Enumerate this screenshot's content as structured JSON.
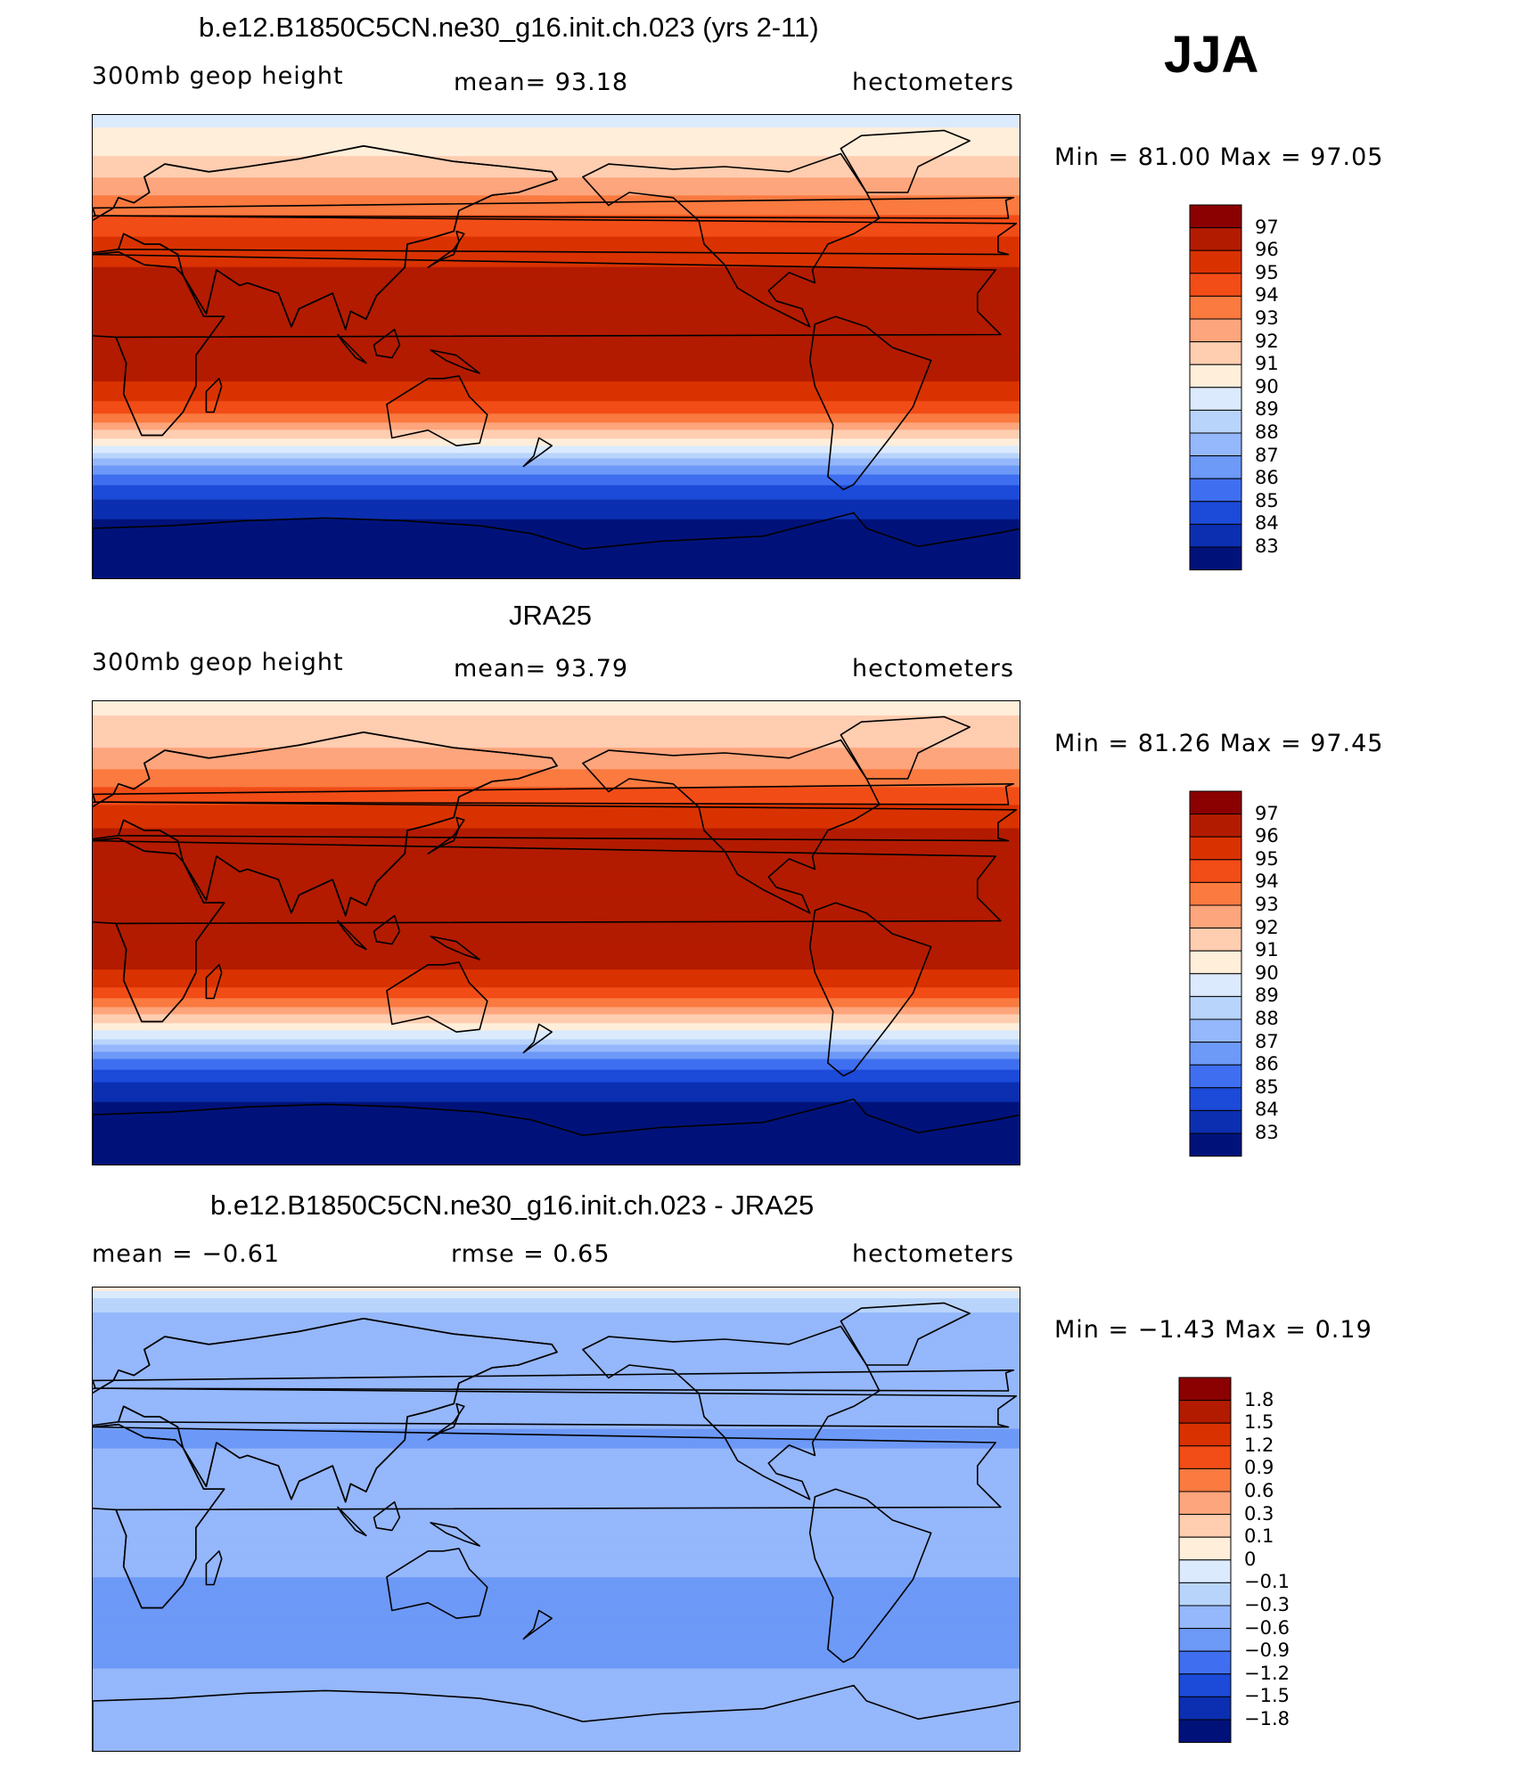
{
  "season": "JJA",
  "panels": [
    {
      "title": "b.e12.B1850C5CN.ne30_g16.init.ch.023 (yrs 2-11)",
      "left_label": "300mb  geop  height",
      "mid_label": "mean=   93.18",
      "right_label": "hectometers",
      "minmax": "Min  =   81.00  Max  =   97.05"
    },
    {
      "title": "JRA25",
      "left_label": "300mb  geop  height",
      "mid_label": "mean=   93.79",
      "right_label": "hectometers",
      "minmax": "Min  =   81.26  Max  =   97.45"
    },
    {
      "title": "b.e12.B1850C5CN.ne30_g16.init.ch.023 - JRA25",
      "left_label": "mean  =    −0.61",
      "mid_label": "rmse  =     0.65",
      "right_label": "hectometers",
      "minmax": "Min  =   −1.43  Max  =     0.19"
    }
  ],
  "chart_data": [
    {
      "type": "heatmap",
      "title": "b.e12.B1850C5CN.ne30_g16.init.ch.023 (yrs 2-11)",
      "variable": "300mb geop height",
      "units": "hectometers",
      "mean": 93.18,
      "min": 81.0,
      "max": 97.05,
      "colorbar_levels": [
        "97",
        "96",
        "95",
        "94",
        "93",
        "92",
        "91",
        "90",
        "89",
        "88",
        "87",
        "86",
        "85",
        "84",
        "83"
      ],
      "colorbar_colors": [
        "#8b0000",
        "#b31b00",
        "#d93200",
        "#f24c17",
        "#fa7a40",
        "#fda57c",
        "#ffcdb0",
        "#ffeeda",
        "#dbeafd",
        "#b9d4fb",
        "#95b7fb",
        "#6d99f7",
        "#3f6ff0",
        "#1c4ad9",
        "#0b2fb0",
        "#00127a"
      ],
      "zonal_profile": [
        [
          90,
          89.6
        ],
        [
          80,
          90.4
        ],
        [
          70,
          91.4
        ],
        [
          60,
          92.8
        ],
        [
          50,
          94.2
        ],
        [
          40,
          95.3
        ],
        [
          30,
          96.1
        ],
        [
          20,
          96.3
        ],
        [
          10,
          96.4
        ],
        [
          0,
          96.4
        ],
        [
          -10,
          96.3
        ],
        [
          -15,
          95.8
        ],
        [
          -20,
          95.2
        ],
        [
          -25,
          94.2
        ],
        [
          -30,
          92.6
        ],
        [
          -35,
          91.0
        ],
        [
          -40,
          89.3
        ],
        [
          -45,
          87.3
        ],
        [
          -50,
          85.7
        ],
        [
          -55,
          84.6
        ],
        [
          -60,
          83.8
        ],
        [
          -65,
          83.2
        ],
        [
          -70,
          82.6
        ],
        [
          -80,
          82.0
        ],
        [
          -90,
          81.3
        ]
      ]
    },
    {
      "type": "heatmap",
      "title": "JRA25",
      "variable": "300mb geop height",
      "units": "hectometers",
      "mean": 93.79,
      "min": 81.26,
      "max": 97.45,
      "colorbar_levels": [
        "97",
        "96",
        "95",
        "94",
        "93",
        "92",
        "91",
        "90",
        "89",
        "88",
        "87",
        "86",
        "85",
        "84",
        "83"
      ],
      "colorbar_colors": [
        "#8b0000",
        "#b31b00",
        "#d93200",
        "#f24c17",
        "#fa7a40",
        "#fda57c",
        "#ffcdb0",
        "#ffeeda",
        "#dbeafd",
        "#b9d4fb",
        "#95b7fb",
        "#6d99f7",
        "#3f6ff0",
        "#1c4ad9",
        "#0b2fb0",
        "#00127a"
      ],
      "zonal_profile": [
        [
          90,
          90.6
        ],
        [
          80,
          91.3
        ],
        [
          70,
          92.2
        ],
        [
          60,
          93.5
        ],
        [
          50,
          95.0
        ],
        [
          40,
          96.1
        ],
        [
          30,
          96.8
        ],
        [
          20,
          96.4
        ],
        [
          10,
          96.4
        ],
        [
          0,
          96.4
        ],
        [
          -10,
          96.3
        ],
        [
          -15,
          95.9
        ],
        [
          -20,
          95.1
        ],
        [
          -25,
          94.0
        ],
        [
          -30,
          92.4
        ],
        [
          -35,
          90.8
        ],
        [
          -40,
          89.2
        ],
        [
          -45,
          87.2
        ],
        [
          -50,
          85.6
        ],
        [
          -55,
          84.5
        ],
        [
          -60,
          83.6
        ],
        [
          -65,
          83.0
        ],
        [
          -70,
          82.4
        ],
        [
          -80,
          81.9
        ],
        [
          -90,
          81.4
        ]
      ]
    },
    {
      "type": "heatmap",
      "title": "b.e12.B1850C5CN.ne30_g16.init.ch.023 - JRA25",
      "units": "hectometers",
      "mean": -0.61,
      "rmse": 0.65,
      "min": -1.43,
      "max": 0.19,
      "colorbar_levels": [
        "1.8",
        "1.5",
        "1.2",
        "0.9",
        "0.6",
        "0.3",
        "0.1",
        "0",
        "−0.1",
        "−0.3",
        "−0.6",
        "−0.9",
        "−1.2",
        "−1.5",
        "−1.8"
      ],
      "colorbar_colors": [
        "#8b0000",
        "#b31b00",
        "#d93200",
        "#f24c17",
        "#fa7a40",
        "#fda57c",
        "#ffcdb0",
        "#ffeeda",
        "#dbeafd",
        "#b9d4fb",
        "#95b7fb",
        "#6d99f7",
        "#3f6ff0",
        "#1c4ad9",
        "#0b2fb0",
        "#00127a"
      ],
      "zonal_profile": [
        [
          90,
          0.05
        ],
        [
          80,
          -0.3
        ],
        [
          70,
          -0.4
        ],
        [
          60,
          -0.5
        ],
        [
          50,
          -0.6
        ],
        [
          40,
          -0.55
        ],
        [
          30,
          -0.65
        ],
        [
          20,
          -0.45
        ],
        [
          10,
          -0.5
        ],
        [
          0,
          -0.45
        ],
        [
          -10,
          -0.45
        ],
        [
          -20,
          -0.55
        ],
        [
          -30,
          -0.75
        ],
        [
          -40,
          -0.6
        ],
        [
          -50,
          -0.75
        ],
        [
          -60,
          -0.55
        ],
        [
          -70,
          -0.4
        ],
        [
          -80,
          -0.35
        ],
        [
          -90,
          -0.3
        ]
      ]
    }
  ]
}
